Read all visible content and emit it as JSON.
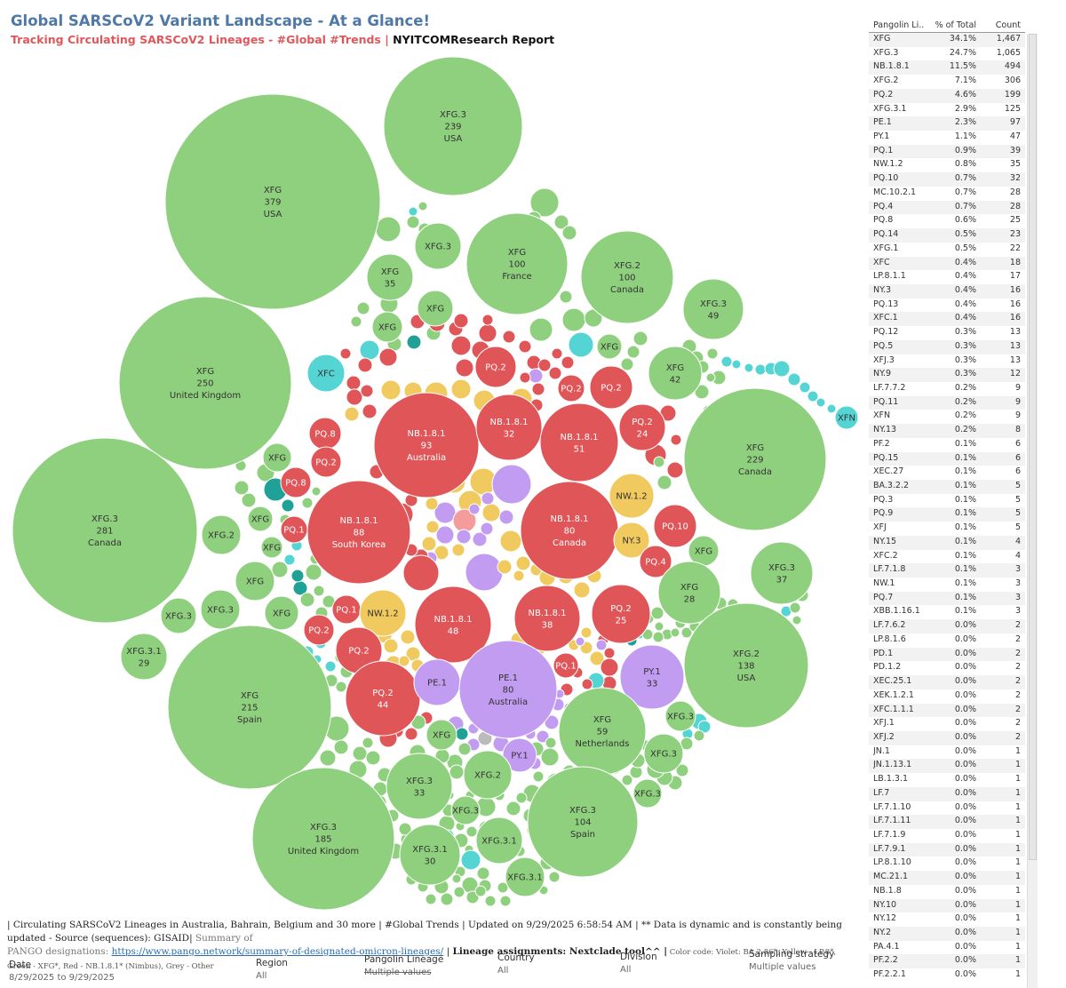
{
  "header": {
    "title": "Global SARSCoV2 Variant Landscape - At a Glance!",
    "subtitle_red": "Tracking Circulating SARSCoV2 Lineages - #Global #Trends",
    "subtitle_sep": " | ",
    "subtitle_dark": "NYITCOMResearch Report"
  },
  "colors": {
    "green": "#8fd07e",
    "red": "#e05558",
    "yellow": "#f0ca5e",
    "violet": "#c29cf0",
    "cyan": "#55d4d4",
    "teal": "#1fa198",
    "grey": "#bbbbbb",
    "pink": "#f49c9c"
  },
  "bubble_labels": [
    {
      "lineage": "XFG.3",
      "count": "239",
      "country": "USA"
    },
    {
      "lineage": "XFG",
      "count": "379",
      "country": "USA"
    },
    {
      "lineage": "XFG.3",
      "count": "",
      "country": ""
    },
    {
      "lineage": "XFG",
      "count": "35",
      "country": ""
    },
    {
      "lineage": "XFG",
      "count": "",
      "country": ""
    },
    {
      "lineage": "XFG",
      "count": "100",
      "country": "France"
    },
    {
      "lineage": "XFG.2",
      "count": "100",
      "country": "Canada"
    },
    {
      "lineage": "XFG.3",
      "count": "49",
      "country": ""
    },
    {
      "lineage": "XFG",
      "count": "",
      "country": ""
    },
    {
      "lineage": "XFG",
      "count": "",
      "country": ""
    },
    {
      "lineage": "XFG",
      "count": "42",
      "country": ""
    },
    {
      "lineage": "XFN",
      "count": "",
      "country": ""
    },
    {
      "lineage": "XFG",
      "count": "250",
      "country": "United Kingdom"
    },
    {
      "lineage": "XFC",
      "count": "",
      "country": ""
    },
    {
      "lineage": "PQ.2",
      "count": "",
      "country": ""
    },
    {
      "lineage": "PQ.2",
      "count": "",
      "country": ""
    },
    {
      "lineage": "PQ.2",
      "count": "",
      "country": ""
    },
    {
      "lineage": "PQ.2",
      "count": "24",
      "country": ""
    },
    {
      "lineage": "NB.1.8.1",
      "count": "93",
      "country": "Australia"
    },
    {
      "lineage": "NB.1.8.1",
      "count": "32",
      "country": ""
    },
    {
      "lineage": "NB.1.8.1",
      "count": "51",
      "country": ""
    },
    {
      "lineage": "XFG",
      "count": "229",
      "country": "Canada"
    },
    {
      "lineage": "PQ.8",
      "count": "",
      "country": ""
    },
    {
      "lineage": "XFG",
      "count": "",
      "country": ""
    },
    {
      "lineage": "PQ.2",
      "count": "",
      "country": ""
    },
    {
      "lineage": "PQ.8",
      "count": "",
      "country": ""
    },
    {
      "lineage": "NW.1.2",
      "count": "",
      "country": ""
    },
    {
      "lineage": "XFG.3",
      "count": "281",
      "country": "Canada"
    },
    {
      "lineage": "XFG",
      "count": "",
      "country": ""
    },
    {
      "lineage": "PQ.1",
      "count": "",
      "country": ""
    },
    {
      "lineage": "NB.1.8.1",
      "count": "88",
      "country": "South Korea"
    },
    {
      "lineage": "NB.1.8.1",
      "count": "80",
      "country": "Canada"
    },
    {
      "lineage": "PQ.10",
      "count": "",
      "country": ""
    },
    {
      "lineage": "XFG.2",
      "count": "",
      "country": ""
    },
    {
      "lineage": "XFG",
      "count": "",
      "country": ""
    },
    {
      "lineage": "NY.3",
      "count": "",
      "country": ""
    },
    {
      "lineage": "XFG",
      "count": "",
      "country": ""
    },
    {
      "lineage": "XFG.3",
      "count": "37",
      "country": ""
    },
    {
      "lineage": "PQ.4",
      "count": "",
      "country": ""
    },
    {
      "lineage": "XFG",
      "count": "",
      "country": ""
    },
    {
      "lineage": "XFG",
      "count": "28",
      "country": ""
    },
    {
      "lineage": "XFG.3",
      "count": "",
      "country": ""
    },
    {
      "lineage": "XFG.3",
      "count": "",
      "country": ""
    },
    {
      "lineage": "XFG",
      "count": "",
      "country": ""
    },
    {
      "lineage": "PQ.1",
      "count": "",
      "country": ""
    },
    {
      "lineage": "NW.1.2",
      "count": "",
      "country": ""
    },
    {
      "lineage": "NB.1.8.1",
      "count": "48",
      "country": ""
    },
    {
      "lineage": "NB.1.8.1",
      "count": "38",
      "country": ""
    },
    {
      "lineage": "PQ.2",
      "count": "25",
      "country": ""
    },
    {
      "lineage": "PQ.2",
      "count": "",
      "country": ""
    },
    {
      "lineage": "PQ.2",
      "count": "",
      "country": ""
    },
    {
      "lineage": "XFG.3.1",
      "count": "29",
      "country": ""
    },
    {
      "lineage": "XFG.2",
      "count": "138",
      "country": "USA"
    },
    {
      "lineage": "XFG",
      "count": "215",
      "country": "Spain"
    },
    {
      "lineage": "PQ.2",
      "count": "44",
      "country": ""
    },
    {
      "lineage": "PE.1",
      "count": "",
      "country": ""
    },
    {
      "lineage": "PE.1",
      "count": "80",
      "country": "Australia"
    },
    {
      "lineage": "PQ.1",
      "count": "",
      "country": ""
    },
    {
      "lineage": "PY.1",
      "count": "33",
      "country": ""
    },
    {
      "lineage": "XFG",
      "count": "59",
      "country": "Netherlands"
    },
    {
      "lineage": "XFG.3",
      "count": "",
      "country": ""
    },
    {
      "lineage": "XFG",
      "count": "",
      "country": ""
    },
    {
      "lineage": "PY.1",
      "count": "",
      "country": ""
    },
    {
      "lineage": "XFG.3",
      "count": "",
      "country": ""
    },
    {
      "lineage": "XFG.3",
      "count": "33",
      "country": ""
    },
    {
      "lineage": "XFG.2",
      "count": "",
      "country": ""
    },
    {
      "lineage": "XFG.3",
      "count": "",
      "country": ""
    },
    {
      "lineage": "XFG.3",
      "count": "185",
      "country": "United Kingdom"
    },
    {
      "lineage": "XFG.3",
      "count": "104",
      "country": "Spain"
    },
    {
      "lineage": "XFG.3",
      "count": "",
      "country": ""
    },
    {
      "lineage": "XFG.3.1",
      "count": "",
      "country": ""
    },
    {
      "lineage": "XFG.3.1",
      "count": "30",
      "country": ""
    },
    {
      "lineage": "XFG.3.1",
      "count": "",
      "country": ""
    }
  ],
  "table": {
    "headers": [
      "Pangolin Li..",
      "% of Total",
      "Count"
    ],
    "rows": [
      [
        "XFG",
        "34.1%",
        "1,467"
      ],
      [
        "XFG.3",
        "24.7%",
        "1,065"
      ],
      [
        "NB.1.8.1",
        "11.5%",
        "494"
      ],
      [
        "XFG.2",
        "7.1%",
        "306"
      ],
      [
        "PQ.2",
        "4.6%",
        "199"
      ],
      [
        "XFG.3.1",
        "2.9%",
        "125"
      ],
      [
        "PE.1",
        "2.3%",
        "97"
      ],
      [
        "PY.1",
        "1.1%",
        "47"
      ],
      [
        "PQ.1",
        "0.9%",
        "39"
      ],
      [
        "NW.1.2",
        "0.8%",
        "35"
      ],
      [
        "PQ.10",
        "0.7%",
        "32"
      ],
      [
        "MC.10.2.1",
        "0.7%",
        "28"
      ],
      [
        "PQ.4",
        "0.7%",
        "28"
      ],
      [
        "PQ.8",
        "0.6%",
        "25"
      ],
      [
        "PQ.14",
        "0.5%",
        "23"
      ],
      [
        "XFG.1",
        "0.5%",
        "22"
      ],
      [
        "XFC",
        "0.4%",
        "18"
      ],
      [
        "LP.8.1.1",
        "0.4%",
        "17"
      ],
      [
        "NY.3",
        "0.4%",
        "16"
      ],
      [
        "PQ.13",
        "0.4%",
        "16"
      ],
      [
        "XFC.1",
        "0.4%",
        "16"
      ],
      [
        "PQ.12",
        "0.3%",
        "13"
      ],
      [
        "PQ.5",
        "0.3%",
        "13"
      ],
      [
        "XFJ.3",
        "0.3%",
        "13"
      ],
      [
        "NY.9",
        "0.3%",
        "12"
      ],
      [
        "LF.7.7.2",
        "0.2%",
        "9"
      ],
      [
        "PQ.11",
        "0.2%",
        "9"
      ],
      [
        "XFN",
        "0.2%",
        "9"
      ],
      [
        "NY.13",
        "0.2%",
        "8"
      ],
      [
        "PF.2",
        "0.1%",
        "6"
      ],
      [
        "PQ.15",
        "0.1%",
        "6"
      ],
      [
        "XEC.27",
        "0.1%",
        "6"
      ],
      [
        "BA.3.2.2",
        "0.1%",
        "5"
      ],
      [
        "PQ.3",
        "0.1%",
        "5"
      ],
      [
        "PQ.9",
        "0.1%",
        "5"
      ],
      [
        "XFJ",
        "0.1%",
        "5"
      ],
      [
        "NY.15",
        "0.1%",
        "4"
      ],
      [
        "XFC.2",
        "0.1%",
        "4"
      ],
      [
        "LF.7.1.8",
        "0.1%",
        "3"
      ],
      [
        "NW.1",
        "0.1%",
        "3"
      ],
      [
        "PQ.7",
        "0.1%",
        "3"
      ],
      [
        "XBB.1.16.1",
        "0.1%",
        "3"
      ],
      [
        "LF.7.6.2",
        "0.0%",
        "2"
      ],
      [
        "LP.8.1.6",
        "0.0%",
        "2"
      ],
      [
        "PD.1",
        "0.0%",
        "2"
      ],
      [
        "PD.1.2",
        "0.0%",
        "2"
      ],
      [
        "XEC.25.1",
        "0.0%",
        "2"
      ],
      [
        "XEK.1.2.1",
        "0.0%",
        "2"
      ],
      [
        "XFC.1.1.1",
        "0.0%",
        "2"
      ],
      [
        "XFJ.1",
        "0.0%",
        "2"
      ],
      [
        "XFJ.2",
        "0.0%",
        "2"
      ],
      [
        "JN.1",
        "0.0%",
        "1"
      ],
      [
        "JN.1.13.1",
        "0.0%",
        "1"
      ],
      [
        "LB.1.3.1",
        "0.0%",
        "1"
      ],
      [
        "LF.7",
        "0.0%",
        "1"
      ],
      [
        "LF.7.1.10",
        "0.0%",
        "1"
      ],
      [
        "LF.7.1.11",
        "0.0%",
        "1"
      ],
      [
        "LF.7.1.9",
        "0.0%",
        "1"
      ],
      [
        "LF.7.9.1",
        "0.0%",
        "1"
      ],
      [
        "LP.8.1.10",
        "0.0%",
        "1"
      ],
      [
        "MC.21.1",
        "0.0%",
        "1"
      ],
      [
        "NB.1.8",
        "0.0%",
        "1"
      ],
      [
        "NY.10",
        "0.0%",
        "1"
      ],
      [
        "NY.12",
        "0.0%",
        "1"
      ],
      [
        "NY.2",
        "0.0%",
        "1"
      ],
      [
        "PA.4.1",
        "0.0%",
        "1"
      ],
      [
        "PF.2.2",
        "0.0%",
        "1"
      ],
      [
        "PF.2.2.1",
        "0.0%",
        "1"
      ]
    ]
  },
  "footer": {
    "line1_a": "| Circulating SARSCoV2 Lineages in Australia, Bahrain, Belgium and 30 more | #Global Trends | Updated on 9/29/2025 6:58:54 AM | ** Data is dynamic and is constantly being updated - Source (sequences): GISAID|",
    "line1_b": " Summary of",
    "line2_a": "PANGO designations: ",
    "link": "https://www.pango.network/summary-of-designated-omicron-lineages/",
    "line2_b": " |  ",
    "bold": "Lineage assignments: Nextclade tool^^ |",
    "small": "  Color code: Violet: BA.2.86*; Yellow - LP.8*, Green - XFG*, Red - NB.1.8.1* (Nimbus),  Grey - Other"
  },
  "filters": [
    {
      "label": "Date",
      "value": "8/29/2025 to 9/29/2025"
    },
    {
      "label": "Region",
      "value": "All"
    },
    {
      "label": "Pangolin Lineage",
      "value": "Multiple values"
    },
    {
      "label": "Country",
      "value": "All"
    },
    {
      "label": "Division",
      "value": "All"
    },
    {
      "label": "Sampling strategy",
      "value": "Multiple values"
    }
  ]
}
